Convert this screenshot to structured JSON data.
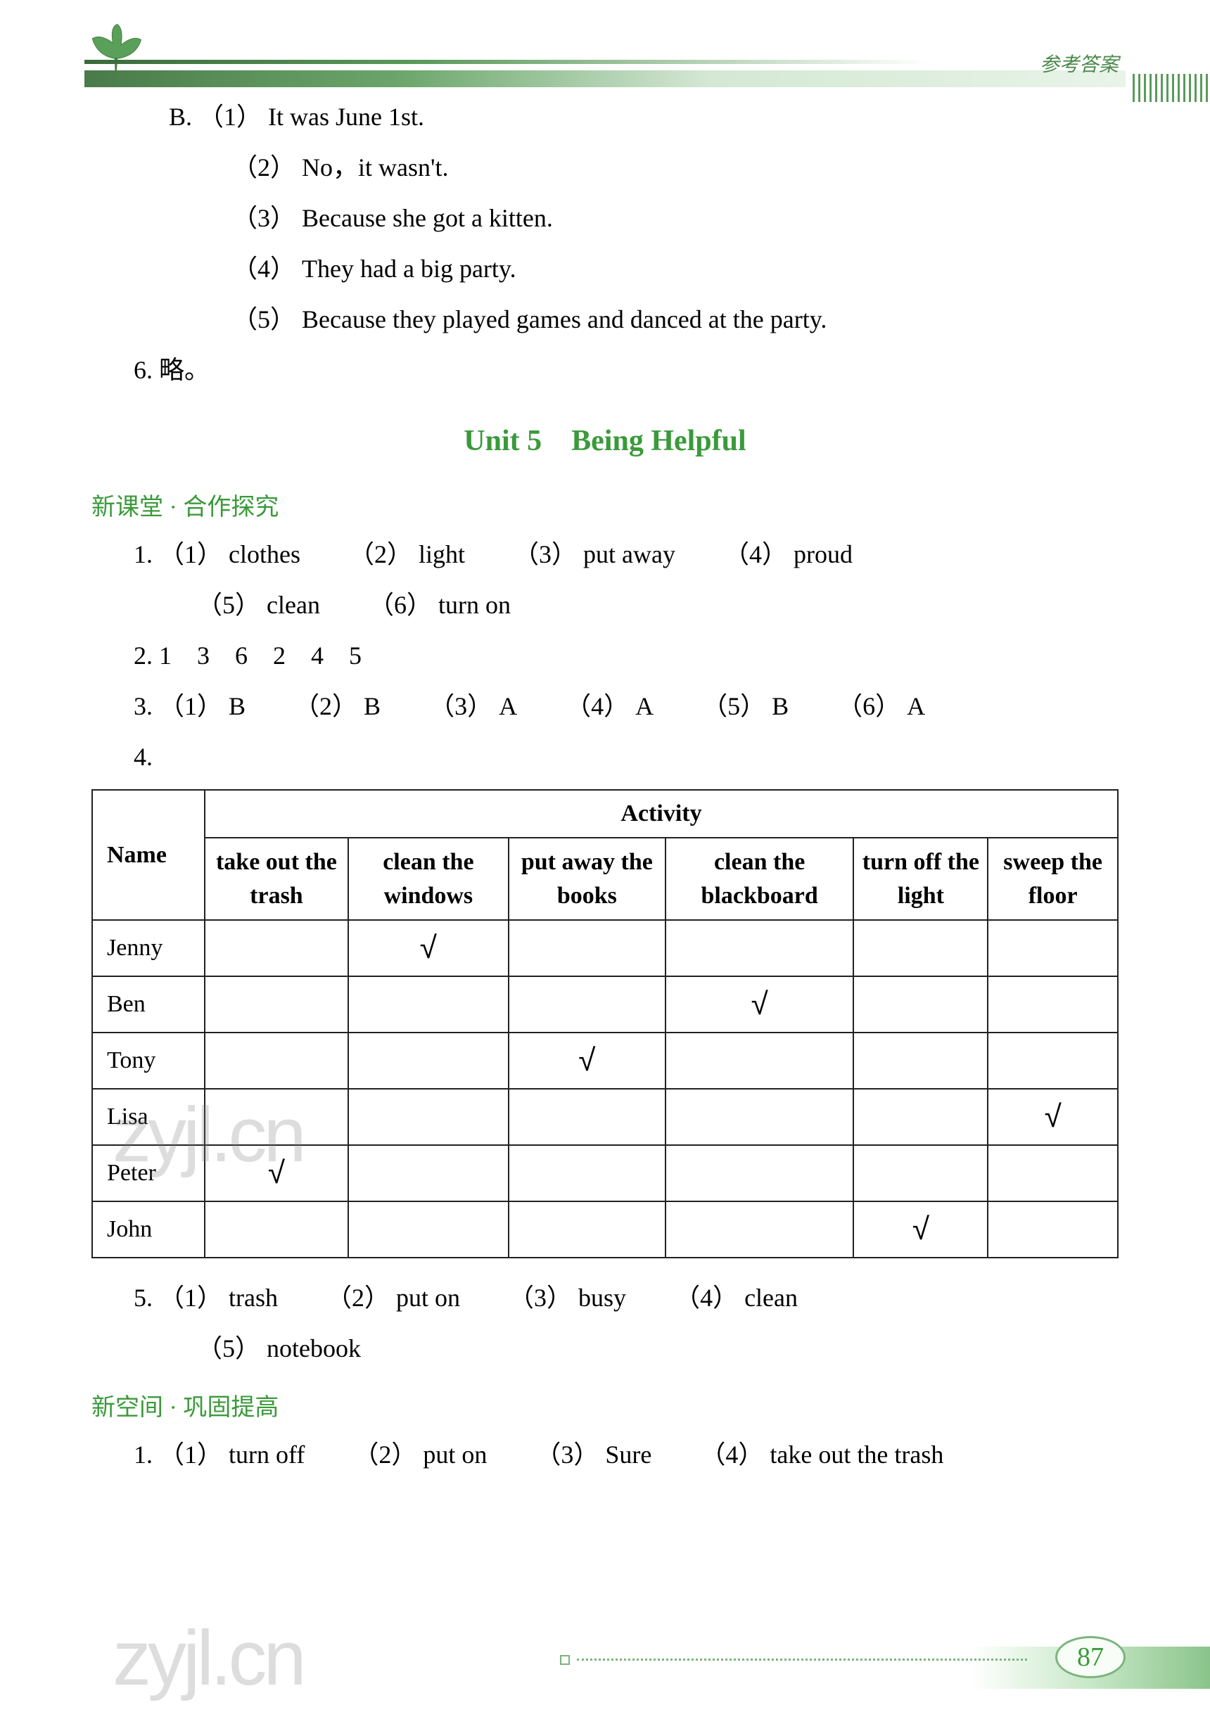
{
  "header": {
    "corner_label": "参考答案"
  },
  "colors": {
    "section_green": "#3a9a3a",
    "band_green_dark": "#4a7a4a",
    "band_green_light": "#e8f4e8",
    "border": "#222222",
    "text": "#222222",
    "watermark": "rgba(120,120,120,0.25)",
    "footer_green": "#7ab57a"
  },
  "fonts": {
    "body_family": "Times New Roman",
    "cjk_family": "SimSun",
    "body_size_pt": 27,
    "title_size_pt": 32,
    "section_size_pt": 26
  },
  "section_b": {
    "prefix": "B.",
    "items": [
      {
        "num": "（1）",
        "text": "It was June 1st."
      },
      {
        "num": "（2）",
        "text": "No，it wasn't."
      },
      {
        "num": "（3）",
        "text": "Because she got a kitten."
      },
      {
        "num": "（4）",
        "text": "They had a big party."
      },
      {
        "num": "（5）",
        "text": "Because they played games and danced at the party."
      }
    ]
  },
  "q6": {
    "num": "6.",
    "text": "略。"
  },
  "unit_title": "Unit 5　Being Helpful",
  "section1": {
    "header": "新课堂 · 合作探究",
    "q1": {
      "num": "1.",
      "items_line1": [
        {
          "num": "（1）",
          "text": "clothes"
        },
        {
          "num": "（2）",
          "text": "light"
        },
        {
          "num": "（3）",
          "text": "put away"
        },
        {
          "num": "（4）",
          "text": "proud"
        }
      ],
      "items_line2": [
        {
          "num": "（5）",
          "text": "clean"
        },
        {
          "num": "（6）",
          "text": "turn on"
        }
      ]
    },
    "q2": {
      "num": "2.",
      "seq": "1　3　6　2　4　5"
    },
    "q3": {
      "num": "3.",
      "items": [
        {
          "num": "（1）",
          "text": "B"
        },
        {
          "num": "（2）",
          "text": "B"
        },
        {
          "num": "（3）",
          "text": "A"
        },
        {
          "num": "（4）",
          "text": "A"
        },
        {
          "num": "（5）",
          "text": "B"
        },
        {
          "num": "（6）",
          "text": "A"
        }
      ]
    },
    "q4": {
      "num": "4."
    },
    "table": {
      "name_header": "Name",
      "activity_header": "Activity",
      "columns": [
        "take out the trash",
        "clean the windows",
        "put away the books",
        "clean the blackboard",
        "turn off the light",
        "sweep the floor"
      ],
      "col_widths": [
        "160px",
        "auto",
        "auto",
        "auto",
        "auto",
        "auto",
        "auto"
      ],
      "check_symbol": "√",
      "rows": [
        {
          "name": "Jenny",
          "checks": [
            false,
            true,
            false,
            false,
            false,
            false
          ]
        },
        {
          "name": "Ben",
          "checks": [
            false,
            false,
            false,
            true,
            false,
            false
          ]
        },
        {
          "name": "Tony",
          "checks": [
            false,
            false,
            true,
            false,
            false,
            false
          ]
        },
        {
          "name": "Lisa",
          "checks": [
            false,
            false,
            false,
            false,
            false,
            true
          ]
        },
        {
          "name": "Peter",
          "checks": [
            true,
            false,
            false,
            false,
            false,
            false
          ]
        },
        {
          "name": "John",
          "checks": [
            false,
            false,
            false,
            false,
            true,
            false
          ]
        }
      ]
    },
    "q5": {
      "num": "5.",
      "items_line1": [
        {
          "num": "（1）",
          "text": "trash"
        },
        {
          "num": "（2）",
          "text": "put on"
        },
        {
          "num": "（3）",
          "text": "busy"
        },
        {
          "num": "（4）",
          "text": "clean"
        }
      ],
      "items_line2": [
        {
          "num": "（5）",
          "text": "notebook"
        }
      ]
    }
  },
  "section2": {
    "header": "新空间 · 巩固提高",
    "q1": {
      "num": "1.",
      "items": [
        {
          "num": "（1）",
          "text": "turn off"
        },
        {
          "num": "（2）",
          "text": "put on"
        },
        {
          "num": "（3）",
          "text": "Sure"
        },
        {
          "num": "（4）",
          "text": "take out the trash"
        }
      ]
    }
  },
  "watermark_text": "zyjl.cn",
  "page_number": "87"
}
